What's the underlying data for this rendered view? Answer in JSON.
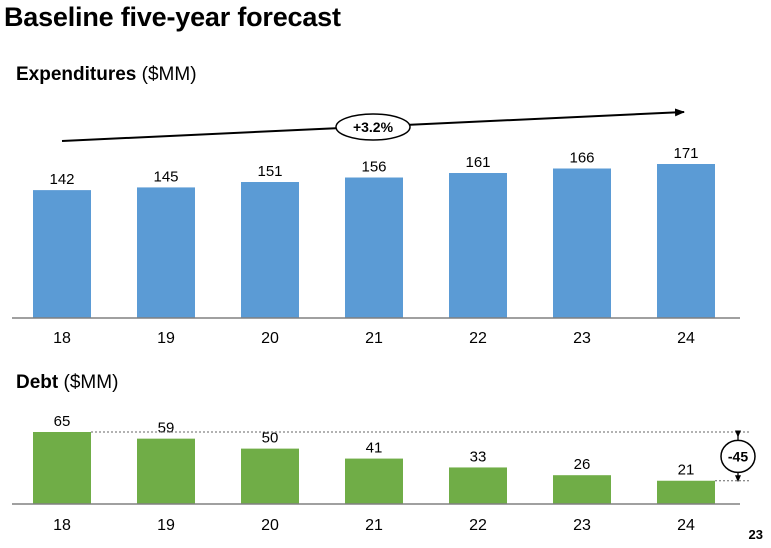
{
  "title": "Baseline five-year forecast",
  "page_number": "23",
  "colors": {
    "expenditure_bar": "#5b9bd5",
    "debt_bar": "#70ad47",
    "axis": "#808080"
  },
  "chart_data": [
    {
      "type": "bar",
      "title_bold": "Expenditures",
      "title_unit": "($MM)",
      "categories": [
        "18",
        "19",
        "20",
        "21",
        "22",
        "23",
        "24"
      ],
      "values": [
        142,
        145,
        151,
        156,
        161,
        166,
        171
      ],
      "annotation": "+3.2%",
      "ylim": [
        0,
        171
      ]
    },
    {
      "type": "bar",
      "title_bold": "Debt",
      "title_unit": "($MM)",
      "categories": [
        "18",
        "19",
        "20",
        "21",
        "22",
        "23",
        "24"
      ],
      "values": [
        65,
        59,
        50,
        41,
        33,
        26,
        21
      ],
      "annotation": "-45",
      "ylim": [
        0,
        65
      ]
    }
  ]
}
